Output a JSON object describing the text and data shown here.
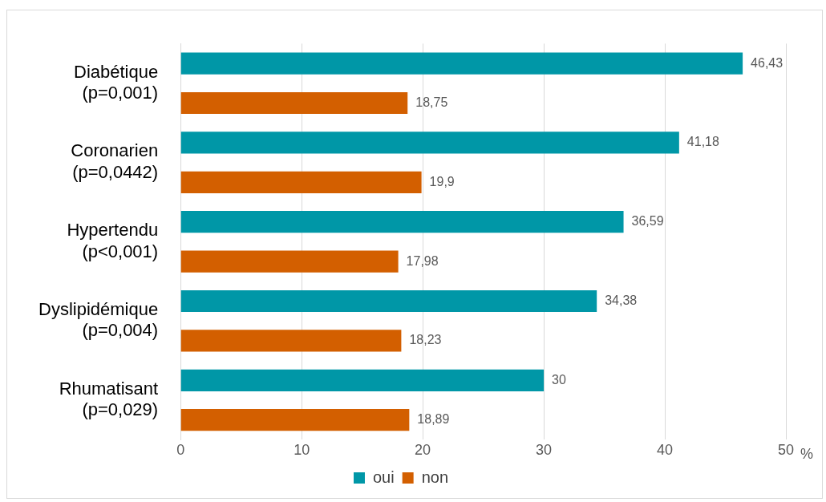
{
  "chart_data": {
    "type": "bar",
    "orientation": "horizontal",
    "xlabel": "%",
    "categories": [
      "Diabétique\n(p=0,001)",
      "Coronarien\n(p=0,0442)",
      "Hypertendu\n(p<0,001)",
      "Dyslipidémique\n(p=0,004)",
      "Rhumatisant\n(p=0,029)"
    ],
    "series": [
      {
        "name": "oui",
        "color": "#0097a7",
        "values": [
          46.43,
          41.18,
          36.59,
          34.38,
          30
        ],
        "value_labels": [
          "46,43",
          "41,18",
          "36,59",
          "34,38",
          "30"
        ]
      },
      {
        "name": "non",
        "color": "#d35f00",
        "values": [
          18.75,
          19.9,
          17.98,
          18.23,
          18.89
        ],
        "value_labels": [
          "18,75",
          "19,9",
          "17,98",
          "18,23",
          "18,89"
        ]
      }
    ],
    "xlim": [
      0,
      50
    ],
    "xticks": [
      0,
      10,
      20,
      30,
      40,
      50
    ],
    "grid": "x",
    "legend": "bottom"
  }
}
